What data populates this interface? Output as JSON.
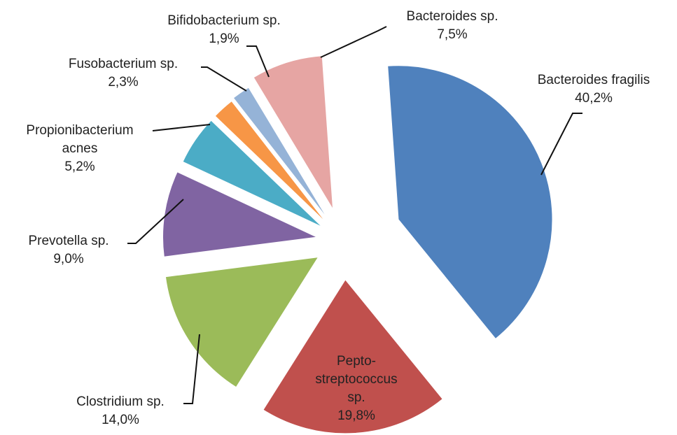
{
  "chart_data": {
    "type": "pie",
    "title": "",
    "exploded": true,
    "slices": [
      {
        "name": "Bacteroides fragilis",
        "label_lines": [
          "Bacteroides fragilis",
          "40,2%"
        ],
        "value": 40.2,
        "color": "#4F81BD"
      },
      {
        "name": "Pepto-streptococcus sp.",
        "label_lines": [
          "Pepto-",
          "streptococcus",
          "sp.",
          "19,8%"
        ],
        "value": 19.8,
        "color": "#C0504D"
      },
      {
        "name": "Clostridium sp.",
        "label_lines": [
          "Clostridium sp.",
          "14,0%"
        ],
        "value": 14.0,
        "color": "#9BBB59"
      },
      {
        "name": "Prevotella sp.",
        "label_lines": [
          "Prevotella sp.",
          "9,0%"
        ],
        "value": 9.0,
        "color": "#8064A2"
      },
      {
        "name": "Propionibacterium acnes",
        "label_lines": [
          "Propionibacterium",
          "acnes",
          "5,2%"
        ],
        "value": 5.2,
        "color": "#4BACC6"
      },
      {
        "name": "Fusobacterium sp.",
        "label_lines": [
          "Fusobacterium sp.",
          "2,3%"
        ],
        "value": 2.3,
        "color": "#F79646"
      },
      {
        "name": "Bifidobacterium sp.",
        "label_lines": [
          "Bifidobacterium sp.",
          "1,9%"
        ],
        "value": 1.9,
        "color": "#95B3D7"
      },
      {
        "name": "Bacteroides sp.",
        "label_lines": [
          "Bacteroides sp.",
          "7,5%"
        ],
        "value": 7.5,
        "color": "#E6A5A3"
      }
    ]
  }
}
